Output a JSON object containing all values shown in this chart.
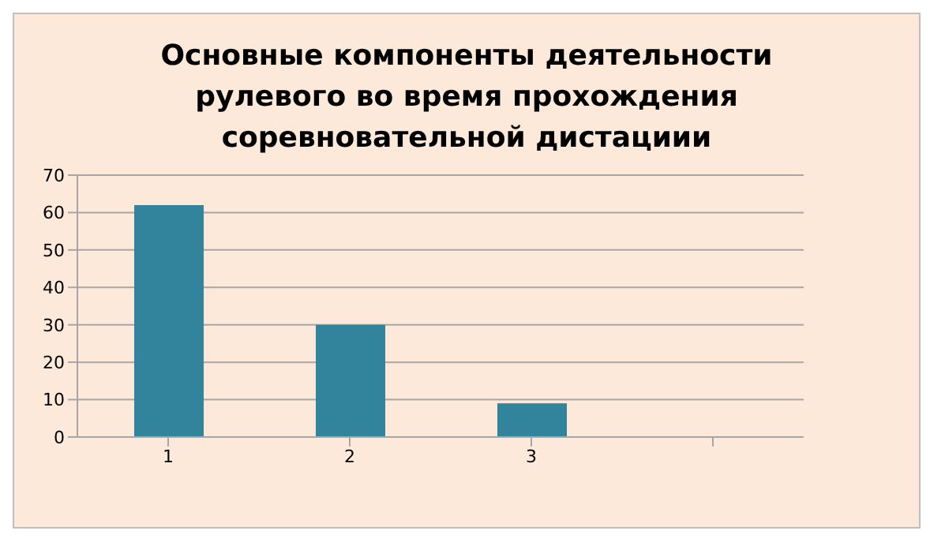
{
  "chart_data": {
    "type": "bar",
    "title": "Основные компоненты деятельности рулевого во время прохождения соревновательной дистациии",
    "categories": [
      "1",
      "2",
      "3",
      null
    ],
    "values": [
      62,
      30,
      9,
      null
    ],
    "color": "#31849b",
    "ylim": [
      0,
      70
    ],
    "yticks": [
      0,
      10,
      20,
      30,
      40,
      50,
      60,
      70
    ],
    "grid": "y"
  }
}
